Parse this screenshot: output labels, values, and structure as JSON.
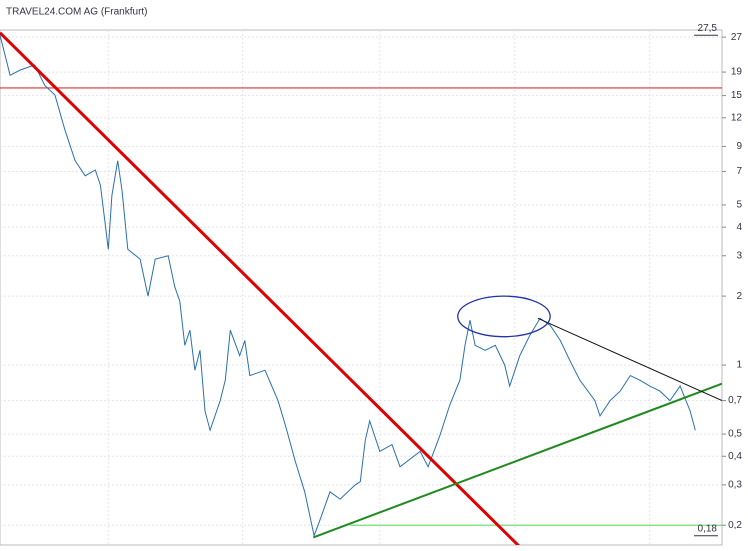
{
  "chart_data": {
    "type": "line",
    "title": "TRAVEL24.COM AG (Frankfurt)",
    "yscale": "log",
    "ylim": [
      0.164,
      29
    ],
    "yticks": [
      27,
      19,
      15,
      12,
      9,
      7,
      5,
      4,
      3,
      2,
      1,
      {
        "value": 0.7,
        "label": "0,7"
      },
      {
        "value": 0.5,
        "label": "0,5"
      },
      {
        "value": 0.4,
        "label": "0,4"
      },
      {
        "value": 0.3,
        "label": "0,3"
      },
      {
        "value": 0.2,
        "label": "0,2"
      }
    ],
    "xlim": [
      0,
      100
    ],
    "xticks": [
      15,
      33.6,
      52.6,
      71.3,
      90
    ],
    "grid": true,
    "series": [
      {
        "color": "#2a6fb0",
        "x": [
          0,
          0.7,
          1.4,
          2.8,
          4.8,
          6.2,
          7.6,
          9,
          10.4,
          11.8,
          13.2,
          13.9,
          14.5,
          15,
          15.5,
          16.3,
          16.9,
          17.7,
          19.4,
          20.5,
          21.5,
          23.3,
          24.2,
          24.9,
          25.6,
          26.3,
          27,
          27.7,
          28.4,
          29.1,
          30.5,
          31.2,
          31.9,
          33.2,
          33.9,
          34.6,
          36.7,
          38.5,
          39.5,
          40.9,
          42.2,
          43.5,
          44.3,
          45.7,
          47.1,
          49.2,
          49.9,
          50.6,
          51.2,
          52.6,
          54.3,
          55.4,
          58.2,
          59.3,
          60.9,
          62.3,
          63.7,
          64.4,
          65.1,
          65.8,
          67.2,
          68.6,
          69.9,
          70.6,
          72,
          73.4,
          74.8,
          76.2,
          77.6,
          78.9,
          80.3,
          82.4,
          83.1,
          84.5,
          85.9,
          87.3,
          88.6,
          90,
          91.4,
          92.8,
          94.2,
          95.6,
          96.3
        ],
        "values": [
          27.5,
          22.5,
          18.4,
          19.4,
          20.4,
          16.6,
          15.1,
          10.6,
          7.8,
          6.7,
          7.1,
          6.1,
          4.3,
          3.2,
          5.5,
          7.8,
          5.8,
          3.2,
          2.9,
          2.0,
          2.9,
          3.0,
          2.2,
          1.9,
          1.22,
          1.42,
          0.95,
          1.16,
          0.63,
          0.52,
          0.7,
          0.86,
          1.42,
          1.1,
          1.28,
          0.9,
          0.95,
          0.7,
          0.55,
          0.38,
          0.28,
          0.18,
          0.21,
          0.28,
          0.26,
          0.3,
          0.31,
          0.47,
          0.57,
          0.42,
          0.45,
          0.36,
          0.42,
          0.36,
          0.49,
          0.67,
          0.86,
          1.22,
          1.57,
          1.22,
          1.16,
          1.22,
          1.0,
          0.81,
          1.1,
          1.35,
          1.6,
          1.49,
          1.28,
          1.05,
          0.86,
          0.7,
          0.6,
          0.7,
          0.77,
          0.9,
          0.86,
          0.81,
          0.77,
          0.7,
          0.81,
          0.63,
          0.52
        ]
      }
    ],
    "annotations": [
      {
        "value": 27.5,
        "label": "27,5"
      },
      {
        "value": 0.18,
        "label": "0,18"
      }
    ],
    "hlines": [
      {
        "value": 16.2,
        "color": "#e03030",
        "x": [
          0,
          100
        ]
      },
      {
        "value": 0.2,
        "color": "#77dd77",
        "x": [
          48.5,
          100
        ]
      }
    ],
    "trendlines": [
      {
        "color": "#e00000",
        "width": 3,
        "x": [
          0,
          72.7
        ],
        "y": [
          28.2,
          0.153
        ]
      },
      {
        "color": "#1f8a1f",
        "width": 2,
        "x": [
          43.4,
          100
        ],
        "y": [
          0.177,
          0.83
        ]
      },
      {
        "color": "#111111",
        "width": 1,
        "x": [
          74.5,
          100
        ],
        "y": [
          1.6,
          0.7
        ]
      }
    ],
    "ellipse": {
      "color": "#2233aa",
      "x": [
        63.4,
        76.2
      ],
      "y": [
        1.33,
        2.0
      ]
    }
  }
}
